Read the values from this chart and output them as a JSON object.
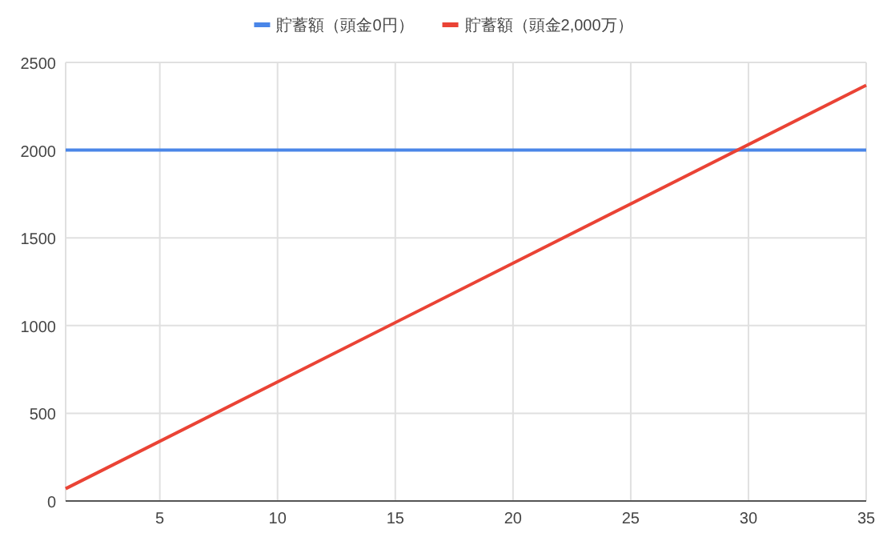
{
  "chart_data": {
    "type": "line",
    "series": [
      {
        "name": "貯蓄額（頭金0円）",
        "color": "#4a86e8",
        "values": [
          2000,
          2000
        ]
      },
      {
        "name": "貯蓄額（頭金2,000万）",
        "color": "#ea4335",
        "values": [
          70,
          2370
        ]
      }
    ],
    "x": [
      1,
      35
    ],
    "xlim": [
      1,
      35
    ],
    "xticks": [
      5,
      10,
      15,
      20,
      25,
      30,
      35
    ],
    "ylim": [
      0,
      2500
    ],
    "yticks": [
      0,
      500,
      1000,
      1500,
      2000,
      2500
    ],
    "grid": true,
    "legend": "top",
    "marker": "none",
    "line_style": "solid"
  }
}
